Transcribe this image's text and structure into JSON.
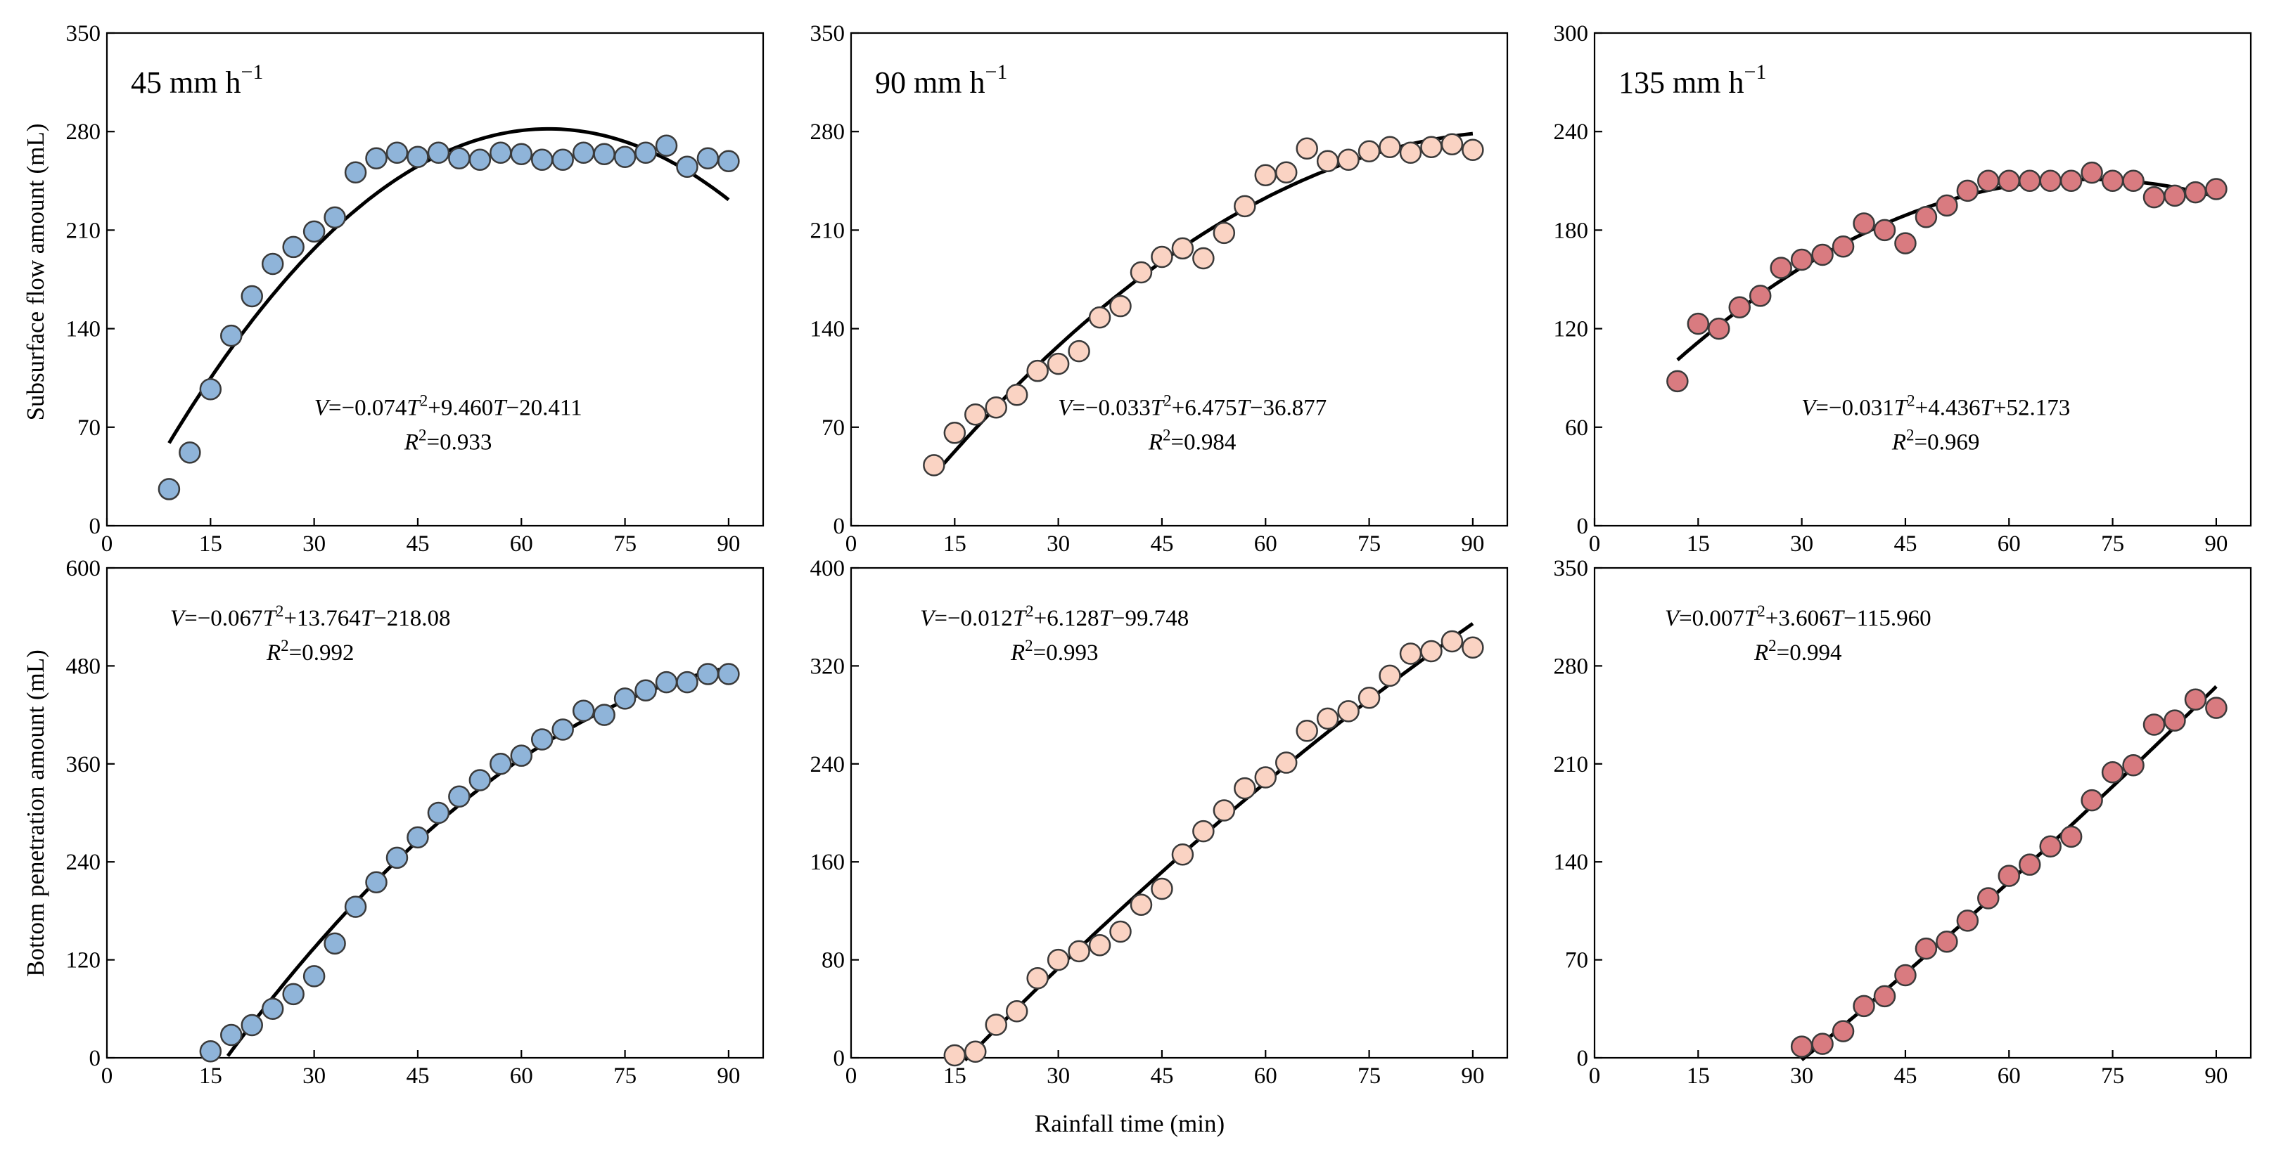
{
  "figure": {
    "shared_xlabel": "Rainfall time (min)",
    "row_ylabels": [
      "Subsurface flow amount (mL)",
      "Bottom penetration amount (mL)"
    ]
  },
  "chart_data": [
    {
      "type": "scatter",
      "row": 0,
      "col": 0,
      "label": "45 mm h−1",
      "label_main": "45 mm h",
      "label_sup": "−1",
      "color": "#8fb4d9",
      "xlim": [
        0,
        95
      ],
      "ylim": [
        0,
        350
      ],
      "xticks": [
        0,
        15,
        30,
        45,
        60,
        75,
        90
      ],
      "yticks": [
        0,
        70,
        140,
        210,
        280,
        350
      ],
      "eq": {
        "pre": "V",
        "a": "=−0.074",
        "b": "T",
        "c": "2",
        "d": "+9.460",
        "e": "T",
        "f": "−20.411"
      },
      "r2": {
        "r": "R",
        "sup": "2",
        "val": "=0.933"
      },
      "fit": {
        "a": -0.074,
        "b": 9.46,
        "c": -20.411,
        "x0": 9,
        "x1": 90
      },
      "x": [
        9,
        12,
        15,
        18,
        21,
        24,
        27,
        30,
        33,
        36,
        39,
        42,
        45,
        48,
        51,
        54,
        57,
        60,
        63,
        66,
        69,
        72,
        75,
        78,
        81,
        84,
        87,
        90
      ],
      "y": [
        26,
        52,
        97,
        135,
        163,
        186,
        198,
        209,
        219,
        251,
        261,
        265,
        262,
        265,
        261,
        260,
        265,
        264,
        260,
        260,
        265,
        264,
        262,
        265,
        270,
        255,
        261,
        259
      ]
    },
    {
      "type": "scatter",
      "row": 0,
      "col": 1,
      "label": "90 mm h−1",
      "label_main": "90 mm h",
      "label_sup": "−1",
      "color": "#fad3c3",
      "xlim": [
        0,
        95
      ],
      "ylim": [
        0,
        350
      ],
      "xticks": [
        0,
        15,
        30,
        45,
        60,
        75,
        90
      ],
      "yticks": [
        0,
        70,
        140,
        210,
        280,
        350
      ],
      "eq": {
        "pre": "V",
        "a": "=−0.033",
        "b": "T",
        "c": "2",
        "d": "+6.475",
        "e": "T",
        "f": "−36.877"
      },
      "r2": {
        "r": "R",
        "sup": "2",
        "val": "=0.984"
      },
      "fit": {
        "a": -0.033,
        "b": 6.475,
        "c": -36.877,
        "x0": 12,
        "x1": 90
      },
      "x": [
        12,
        15,
        18,
        21,
        24,
        27,
        30,
        33,
        36,
        39,
        42,
        45,
        48,
        51,
        54,
        57,
        60,
        63,
        66,
        69,
        72,
        75,
        78,
        81,
        84,
        87,
        90
      ],
      "y": [
        43,
        66,
        79,
        84,
        93,
        110,
        115,
        124,
        148,
        156,
        180,
        191,
        197,
        190,
        208,
        227,
        249,
        251,
        268,
        259,
        260,
        266,
        269,
        265,
        269,
        271,
        267
      ]
    },
    {
      "type": "scatter",
      "row": 0,
      "col": 2,
      "label": "135 mm h−1",
      "label_main": "135 mm h",
      "label_sup": "−1",
      "color": "#d97b80",
      "xlim": [
        0,
        95
      ],
      "ylim": [
        0,
        300
      ],
      "xticks": [
        0,
        15,
        30,
        45,
        60,
        75,
        90
      ],
      "yticks": [
        0,
        60,
        120,
        180,
        240,
        300
      ],
      "eq": {
        "pre": "V",
        "a": "=−0.031",
        "b": "T",
        "c": "2",
        "d": "+4.436",
        "e": "T",
        "f": "+52.173"
      },
      "r2": {
        "r": "R",
        "sup": "2",
        "val": "=0.969"
      },
      "fit": {
        "a": -0.031,
        "b": 4.436,
        "c": 52.173,
        "x0": 12,
        "x1": 90
      },
      "x": [
        12,
        15,
        18,
        21,
        24,
        27,
        30,
        33,
        36,
        39,
        42,
        45,
        48,
        51,
        54,
        57,
        60,
        63,
        66,
        69,
        72,
        75,
        78,
        81,
        84,
        87,
        90
      ],
      "y": [
        88,
        123,
        120,
        133,
        140,
        157,
        162,
        165,
        170,
        184,
        180,
        172,
        188,
        195,
        204,
        210,
        210,
        210,
        210,
        210,
        215,
        210,
        210,
        200,
        201,
        203,
        205
      ]
    },
    {
      "type": "scatter",
      "row": 1,
      "col": 0,
      "label": "",
      "color": "#8fb4d9",
      "xlim": [
        0,
        95
      ],
      "ylim": [
        0,
        600
      ],
      "xticks": [
        0,
        15,
        30,
        45,
        60,
        75,
        90
      ],
      "yticks": [
        0,
        120,
        240,
        360,
        480,
        600
      ],
      "eq": {
        "pre": "V",
        "a": "=−0.067",
        "b": "T",
        "c": "2",
        "d": "+13.764",
        "e": "T",
        "f": "−218.08"
      },
      "r2": {
        "r": "R",
        "sup": "2",
        "val": "=0.992"
      },
      "fit": {
        "a": -0.067,
        "b": 13.764,
        "c": -218.08,
        "x0": 17.5,
        "x1": 90
      },
      "x": [
        15,
        18,
        21,
        24,
        27,
        30,
        33,
        36,
        39,
        42,
        45,
        48,
        51,
        54,
        57,
        60,
        63,
        66,
        69,
        72,
        75,
        78,
        81,
        84,
        87,
        90
      ],
      "y": [
        8,
        28,
        40,
        60,
        78,
        100,
        140,
        185,
        215,
        245,
        270,
        300,
        320,
        340,
        360,
        370,
        390,
        402,
        425,
        420,
        440,
        450,
        460,
        460,
        470,
        470
      ]
    },
    {
      "type": "scatter",
      "row": 1,
      "col": 1,
      "label": "",
      "color": "#fad3c3",
      "xlim": [
        0,
        95
      ],
      "ylim": [
        0,
        400
      ],
      "xticks": [
        0,
        15,
        30,
        45,
        60,
        75,
        90
      ],
      "yticks": [
        0,
        80,
        160,
        240,
        320,
        400
      ],
      "eq": {
        "pre": "V",
        "a": "=−0.012",
        "b": "T",
        "c": "2",
        "d": "+6.128",
        "e": "T",
        "f": "−99.748"
      },
      "r2": {
        "r": "R",
        "sup": "2",
        "val": "=0.993"
      },
      "fit": {
        "a": -0.012,
        "b": 6.128,
        "c": -99.748,
        "x0": 16.5,
        "x1": 90
      },
      "x": [
        15,
        18,
        21,
        24,
        27,
        30,
        33,
        36,
        39,
        42,
        45,
        48,
        51,
        54,
        57,
        60,
        63,
        66,
        69,
        72,
        75,
        78,
        81,
        84,
        87,
        90
      ],
      "y": [
        2,
        5,
        27,
        38,
        65,
        80,
        87,
        92,
        103,
        125,
        138,
        166,
        185,
        202,
        220,
        229,
        241,
        267,
        277,
        283,
        294,
        312,
        330,
        332,
        340,
        335
      ]
    },
    {
      "type": "scatter",
      "row": 1,
      "col": 2,
      "label": "",
      "color": "#d97b80",
      "xlim": [
        0,
        95
      ],
      "ylim": [
        0,
        350
      ],
      "xticks": [
        0,
        15,
        30,
        45,
        60,
        75,
        90
      ],
      "yticks": [
        0,
        70,
        140,
        210,
        280,
        350
      ],
      "eq": {
        "pre": "V",
        "a": "=0.007",
        "b": "T",
        "c": "2",
        "d": "+3.606",
        "e": "T",
        "f": "−115.960"
      },
      "r2": {
        "r": "R",
        "sup": "2",
        "val": "=0.994"
      },
      "fit": {
        "a": 0.007,
        "b": 3.606,
        "c": -115.96,
        "x0": 30,
        "x1": 90
      },
      "x": [
        30,
        33,
        36,
        39,
        42,
        45,
        48,
        51,
        54,
        57,
        60,
        63,
        66,
        69,
        72,
        75,
        78,
        81,
        84,
        87,
        90
      ],
      "y": [
        8,
        10,
        19,
        37,
        44,
        59,
        78,
        83,
        98,
        114,
        130,
        138,
        151,
        158,
        184,
        204,
        209,
        238,
        241,
        256,
        250
      ]
    }
  ]
}
